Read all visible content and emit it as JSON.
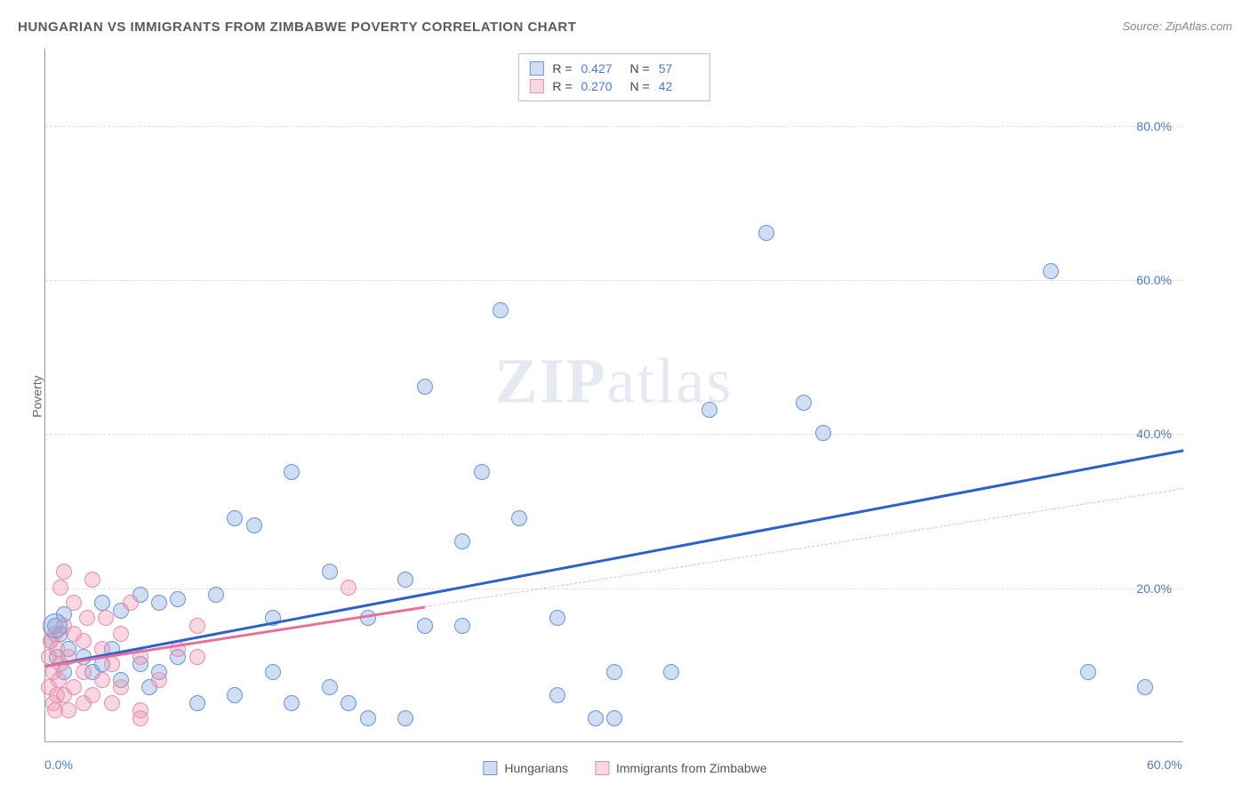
{
  "title": "HUNGARIAN VS IMMIGRANTS FROM ZIMBABWE POVERTY CORRELATION CHART",
  "source": "Source: ZipAtlas.com",
  "y_axis_label": "Poverty",
  "watermark": {
    "bold": "ZIP",
    "light": "atlas"
  },
  "chart": {
    "type": "scatter",
    "xlim": [
      0,
      60
    ],
    "ylim": [
      0,
      90
    ],
    "plot_background": "#ffffff",
    "grid_color": "#dddddd",
    "axis_color": "#999999",
    "y_ticks": [
      20,
      40,
      60,
      80
    ],
    "y_tick_labels": [
      "20.0%",
      "40.0%",
      "60.0%",
      "80.0%"
    ],
    "x_ticks": [
      0,
      60
    ],
    "x_tick_labels": [
      "0.0%",
      "60.0%"
    ],
    "marker_radius": 9,
    "marker_large_radius": 14,
    "series": [
      {
        "name": "Hungarians",
        "marker_fill": "rgba(120,160,220,0.35)",
        "marker_stroke": "#6a93d4",
        "line_color": "#2a62c9",
        "line_width": 2.5,
        "line_solid_end_x": 60,
        "line_dashed": false,
        "trend": {
          "x1": 0,
          "y1": 10,
          "x2": 60,
          "y2": 38
        },
        "r_value": "0.427",
        "n_value": "57",
        "points": [
          [
            0.3,
            13
          ],
          [
            0.5,
            15
          ],
          [
            0.6,
            11
          ],
          [
            0.8,
            14
          ],
          [
            1,
            16.5
          ],
          [
            1,
            9
          ],
          [
            1.2,
            12
          ],
          [
            2,
            11
          ],
          [
            2.5,
            9
          ],
          [
            3,
            10
          ],
          [
            3,
            18
          ],
          [
            3.5,
            12
          ],
          [
            4,
            8
          ],
          [
            4,
            17
          ],
          [
            5,
            10
          ],
          [
            5,
            19
          ],
          [
            5.5,
            7
          ],
          [
            6,
            9
          ],
          [
            6,
            18
          ],
          [
            7,
            11
          ],
          [
            7,
            18.5
          ],
          [
            8,
            5
          ],
          [
            9,
            19
          ],
          [
            10,
            6
          ],
          [
            10,
            29
          ],
          [
            11,
            28
          ],
          [
            12,
            9
          ],
          [
            12,
            16
          ],
          [
            13,
            5
          ],
          [
            13,
            35
          ],
          [
            15,
            7
          ],
          [
            15,
            22
          ],
          [
            16,
            5
          ],
          [
            17,
            16
          ],
          [
            17,
            3
          ],
          [
            19,
            21
          ],
          [
            19,
            3
          ],
          [
            20,
            46
          ],
          [
            20,
            15
          ],
          [
            22,
            26
          ],
          [
            22,
            15
          ],
          [
            23,
            35
          ],
          [
            24,
            56
          ],
          [
            25,
            29
          ],
          [
            27,
            6
          ],
          [
            27,
            16
          ],
          [
            29,
            3
          ],
          [
            30,
            3
          ],
          [
            30,
            9
          ],
          [
            33,
            9
          ],
          [
            35,
            43
          ],
          [
            38,
            66
          ],
          [
            40,
            44
          ],
          [
            41,
            40
          ],
          [
            53,
            61
          ],
          [
            55,
            9
          ],
          [
            58,
            7
          ]
        ]
      },
      {
        "name": "Immigrants from Zimbabwe",
        "marker_fill": "rgba(240,150,180,0.38)",
        "marker_stroke": "#e48faf",
        "line_color": "#e86f9a",
        "line_width": 2.5,
        "line_solid_end_x": 20,
        "line_dashed": true,
        "dashed_color": "rgba(232,111,154,0.55)",
        "trend": {
          "x1": 0,
          "y1": 10,
          "x2": 60,
          "y2": 33
        },
        "r_value": "0.270",
        "n_value": "42",
        "points": [
          [
            0.2,
            11
          ],
          [
            0.2,
            7
          ],
          [
            0.3,
            13
          ],
          [
            0.4,
            5
          ],
          [
            0.4,
            9
          ],
          [
            0.5,
            14
          ],
          [
            0.5,
            4
          ],
          [
            0.6,
            6
          ],
          [
            0.6,
            12
          ],
          [
            0.7,
            8
          ],
          [
            0.8,
            10
          ],
          [
            0.8,
            20
          ],
          [
            1,
            6
          ],
          [
            1,
            15
          ],
          [
            1,
            22
          ],
          [
            1.2,
            4
          ],
          [
            1.2,
            11
          ],
          [
            1.5,
            7
          ],
          [
            1.5,
            14
          ],
          [
            1.5,
            18
          ],
          [
            2,
            5
          ],
          [
            2,
            9
          ],
          [
            2,
            13
          ],
          [
            2.2,
            16
          ],
          [
            2.5,
            6
          ],
          [
            2.5,
            21
          ],
          [
            3,
            8
          ],
          [
            3,
            12
          ],
          [
            3.2,
            16
          ],
          [
            3.5,
            5
          ],
          [
            3.5,
            10
          ],
          [
            4,
            7
          ],
          [
            4,
            14
          ],
          [
            4.5,
            18
          ],
          [
            5,
            4
          ],
          [
            5,
            11
          ],
          [
            6,
            8
          ],
          [
            7,
            12
          ],
          [
            8,
            11
          ],
          [
            8,
            15
          ],
          [
            16,
            20
          ],
          [
            5,
            3
          ]
        ]
      }
    ]
  },
  "legend_labels": {
    "r_prefix": "R =",
    "n_prefix": "N =",
    "series1": "Hungarians",
    "series2": "Immigrants from Zimbabwe"
  }
}
